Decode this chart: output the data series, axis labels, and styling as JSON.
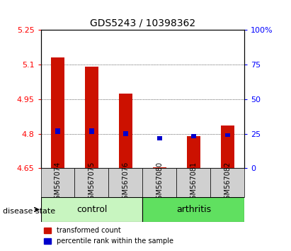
{
  "title": "GDS5243 / 10398362",
  "samples": [
    "GSM567074",
    "GSM567075",
    "GSM567076",
    "GSM567080",
    "GSM567081",
    "GSM567082"
  ],
  "red_values": [
    5.13,
    5.09,
    4.975,
    4.655,
    4.79,
    4.835
  ],
  "red_base": 4.65,
  "blue_values": [
    4.8,
    4.8,
    4.79,
    4.77,
    4.78,
    4.785
  ],
  "blue_heights": [
    0.022,
    0.022,
    0.02,
    0.018,
    0.018,
    0.018
  ],
  "ylim_left": [
    4.65,
    5.25
  ],
  "ylim_right": [
    0,
    100
  ],
  "yticks_left": [
    4.65,
    4.8,
    4.95,
    5.1,
    5.25
  ],
  "ytick_labels_left": [
    "4.65",
    "4.8",
    "4.95",
    "5.1",
    "5.25"
  ],
  "yticks_right": [
    0,
    25,
    50,
    75,
    100
  ],
  "ytick_labels_right": [
    "0",
    "25",
    "50",
    "75",
    "100%"
  ],
  "group_colors": {
    "control": "#c8f5c0",
    "arthritis": "#60e060"
  },
  "bar_color_red": "#cc1100",
  "bar_color_blue": "#0000cc",
  "bg_color": "white",
  "sample_bg": "#d0d0d0",
  "bar_width": 0.4,
  "blue_bar_width": 0.14,
  "disease_state_label": "disease state"
}
